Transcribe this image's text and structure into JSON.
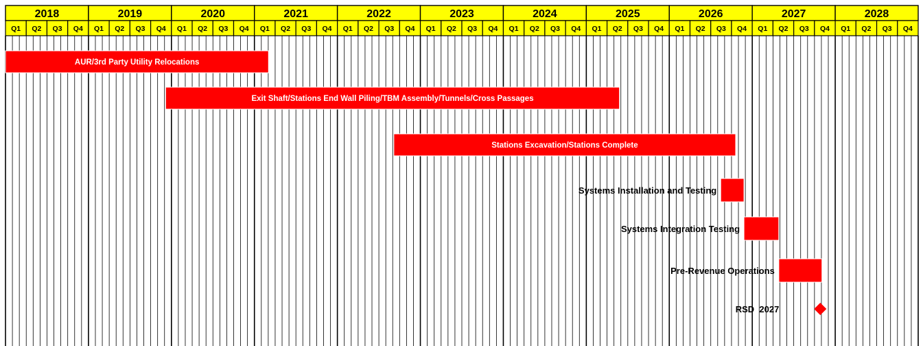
{
  "chart_data": {
    "type": "gantt",
    "years": [
      "2018",
      "2019",
      "2020",
      "2021",
      "2022",
      "2023",
      "2024",
      "2025",
      "2026",
      "2027",
      "2028"
    ],
    "quarters": [
      "Q1",
      "Q2",
      "Q3",
      "Q4"
    ],
    "tasks": [
      {
        "label": "AUR/3rd Party Utility Relocations",
        "start": 2018.0,
        "end": 2021.17,
        "label_position": "inside"
      },
      {
        "label": "Exit Shaft/Stations End Wall Piling/TBM Assembly/Tunnels/Cross Passages",
        "start": 2019.93,
        "end": 2025.4,
        "label_position": "inside"
      },
      {
        "label": "Stations Excavation/Stations Complete",
        "start": 2022.68,
        "end": 2026.8,
        "label_position": "inside"
      },
      {
        "label": "Systems Installation and Testing",
        "start": 2026.62,
        "end": 2026.9,
        "label_position": "left"
      },
      {
        "label": "Systems Integration Testing",
        "start": 2026.9,
        "end": 2027.32,
        "label_position": "left"
      },
      {
        "label": "Pre-Revenue Operations",
        "start": 2027.32,
        "end": 2027.84,
        "label_position": "left"
      }
    ],
    "milestones": [
      {
        "label": "RSD  2027",
        "date": 2027.82
      }
    ],
    "colors": {
      "header_fill": "#ffff00",
      "bar_fill": "#ff0000",
      "gridline": "#000000"
    },
    "grid": true
  }
}
